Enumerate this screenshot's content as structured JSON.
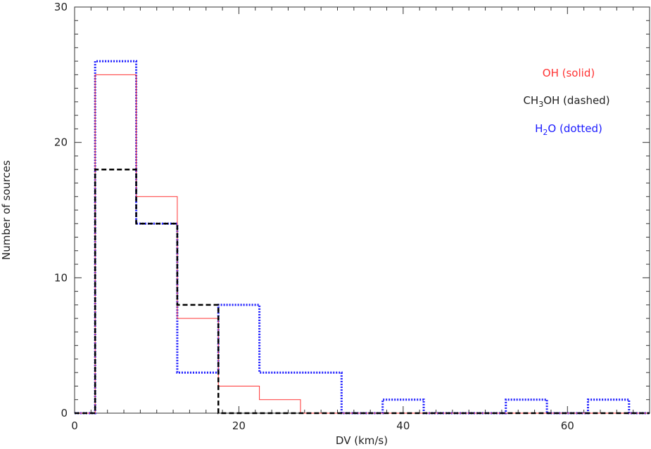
{
  "chart_data": {
    "type": "histogram",
    "xlabel": "DV (km/s)",
    "ylabel": "Number of sources",
    "xlim": [
      0,
      70
    ],
    "ylim": [
      0,
      30
    ],
    "x_ticks": [
      "0",
      "20",
      "40",
      "60"
    ],
    "y_ticks": [
      "0",
      "10",
      "20",
      "30"
    ],
    "grid": false,
    "legend_position": "top-right",
    "bin_edges": [
      2.5,
      7.5,
      12.5,
      17.5,
      22.5,
      27.5,
      32.5,
      37.5,
      42.5,
      47.5,
      52.5,
      57.5,
      62.5,
      67.5
    ],
    "series": [
      {
        "name": "OH",
        "legend_main": "OH",
        "legend_sub": "",
        "legend_tail": " (solid)",
        "style": "solid",
        "color": "#ff3333",
        "values": [
          25,
          16,
          7,
          2,
          1,
          0,
          0,
          0,
          0,
          0,
          0,
          0,
          0
        ]
      },
      {
        "name": "CH3OH",
        "legend_main": "CH",
        "legend_sub": "3",
        "legend_tail": "OH (dashed)",
        "style": "dashed",
        "color": "#000000",
        "values": [
          18,
          14,
          8,
          0,
          0,
          0,
          0,
          0,
          0,
          0,
          0,
          0,
          0
        ]
      },
      {
        "name": "H2O",
        "legend_main": "H",
        "legend_sub": "2",
        "legend_tail": "O (dotted)",
        "style": "dotted",
        "color": "#1a1aff",
        "values": [
          26,
          14,
          3,
          8,
          3,
          3,
          0,
          1,
          0,
          0,
          1,
          0,
          1
        ]
      }
    ]
  }
}
